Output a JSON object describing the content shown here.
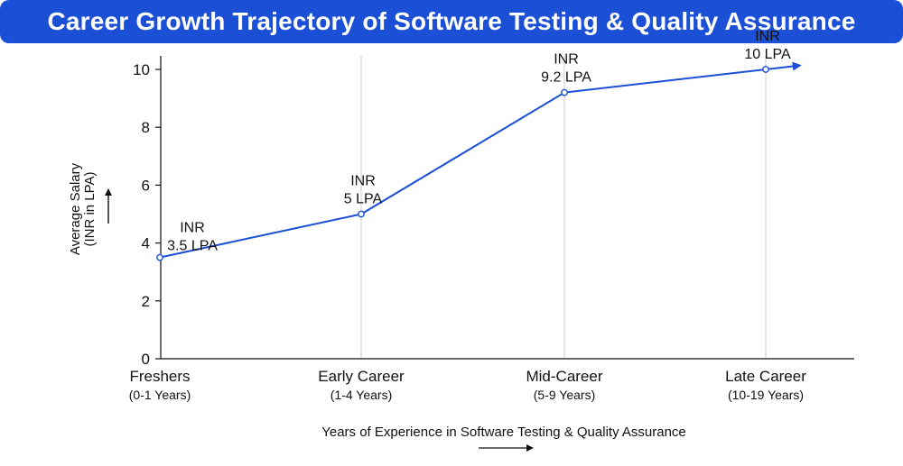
{
  "title": "Career Growth Trajectory of Software Testing & Quality Assurance",
  "colors": {
    "banner": "#1a4fd6",
    "line": "#1a4fd6",
    "grid": "#cccccc",
    "axis": "#111111"
  },
  "chart_data": {
    "type": "line",
    "categories": [
      "Freshers",
      "Early Career",
      "Mid-Career",
      "Late Career"
    ],
    "category_sublabels": [
      "(0-1 Years)",
      "(1-4 Years)",
      "(5-9 Years)",
      "(10-19 Years)"
    ],
    "values": [
      3.5,
      5,
      9.2,
      10
    ],
    "data_labels": [
      [
        "INR",
        "3.5 LPA"
      ],
      [
        "INR",
        "5 LPA"
      ],
      [
        "INR",
        "9.2 LPA"
      ],
      [
        "INR",
        "10 LPA"
      ]
    ],
    "xlabel": "Years of Experience in Software Testing & Quality Assurance",
    "ylabel_lines": [
      "Average Salary",
      "(INR in LPA)"
    ],
    "ylim": [
      0,
      10
    ],
    "yticks": [
      0,
      2,
      4,
      6,
      8,
      10
    ],
    "grid": "vertical",
    "line_end_arrow": true
  }
}
